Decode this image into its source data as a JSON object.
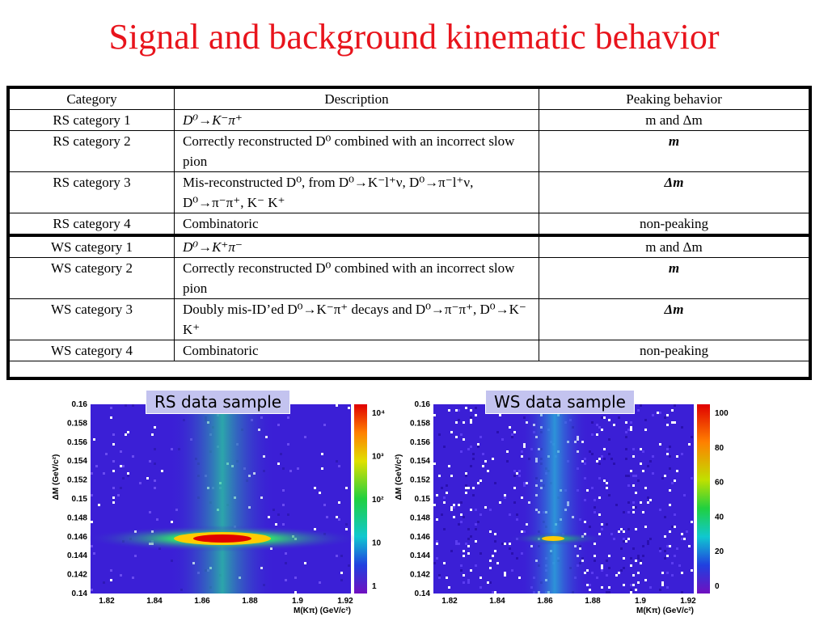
{
  "title": "Signal and background kinematic behavior",
  "table": {
    "headers": [
      "Category",
      "Description",
      "Peaking behavior"
    ],
    "rows": [
      {
        "category": "RS category 1",
        "description": "D⁰→K⁻π⁺",
        "peaking": "m and Δm"
      },
      {
        "category": "RS category 2",
        "description": "Correctly reconstructed D⁰ combined with an incorrect slow pion",
        "peaking": "m"
      },
      {
        "category": "RS category 3",
        "description": "Mis-reconstructed D⁰, from D⁰→K⁻l⁺ν, D⁰→π⁻l⁺ν, D⁰→π⁻π⁺, K⁻ K⁺",
        "peaking": "Δm"
      },
      {
        "category": "RS category 4",
        "description": "Combinatoric",
        "peaking": "non-peaking"
      },
      {
        "category": "WS category 1",
        "description": "D⁰→K⁺π⁻",
        "peaking": "m and Δm"
      },
      {
        "category": "WS category 2",
        "description": "Correctly reconstructed D⁰ combined with an incorrect slow pion",
        "peaking": "m"
      },
      {
        "category": "WS category 3",
        "description": "Doubly mis-ID’ed D⁰→K⁻π⁺ decays and D⁰→π⁻π⁺, D⁰→K⁻ K⁺",
        "peaking": "Δm"
      },
      {
        "category": "WS category 4",
        "description": "Combinatoric",
        "peaking": "non-peaking"
      }
    ]
  },
  "plots": {
    "rs": {
      "label": "RS data sample",
      "y_axis_label": "ΔM (GeV/c²)",
      "x_axis_label": "M(Kπ) (GeV/c²)",
      "y_ticks": [
        "0.16",
        "0.158",
        "0.156",
        "0.154",
        "0.152",
        "0.15",
        "0.148",
        "0.146",
        "0.144",
        "0.142",
        "0.14"
      ],
      "x_ticks": [
        "1.82",
        "1.84",
        "1.86",
        "1.88",
        "1.9",
        "1.92"
      ],
      "colorbar_ticks": [
        "10⁴",
        "10³",
        "10²",
        "10",
        "1"
      ]
    },
    "ws": {
      "label": "WS data sample",
      "y_axis_label": "ΔM (GeV/c²)",
      "x_axis_label": "M(Kπ) (GeV/c²)",
      "y_ticks": [
        "0.16",
        "0.158",
        "0.156",
        "0.154",
        "0.152",
        "0.15",
        "0.148",
        "0.146",
        "0.144",
        "0.142",
        "0.14"
      ],
      "x_ticks": [
        "1.82",
        "1.84",
        "1.86",
        "1.88",
        "1.9",
        "1.92"
      ],
      "colorbar_ticks": [
        "100",
        "80",
        "60",
        "40",
        "20",
        "0"
      ]
    }
  },
  "colors": {
    "title": "#e8141c",
    "heatmap_background": "#3b1fd6",
    "label_box": "#c3c3ef"
  }
}
